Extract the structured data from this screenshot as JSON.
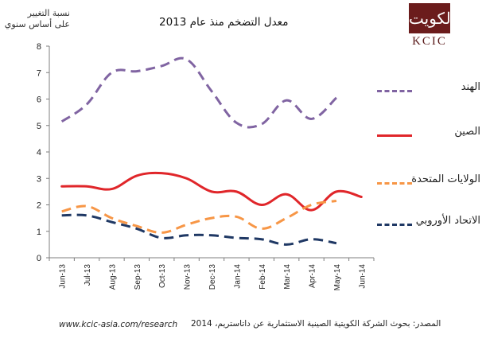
{
  "header": {
    "ylabel_line1": "نسبة التغيير",
    "ylabel_line2": "على أساس سنوي",
    "title": "معدل التضخم منذ عام 2013"
  },
  "logo": {
    "glyph": "الكويت",
    "text": "KCIC"
  },
  "footer": {
    "url": "www.kcic-asia.com/research",
    "source": "المصدر: بحوث الشركة الكويتية الصينية الاستثمارية عن داتاستريم، 2014"
  },
  "chart_data": {
    "type": "line",
    "title": "معدل التضخم منذ عام 2013",
    "ylabel": "نسبة التغيير على أساس سنوي",
    "xlabel": "",
    "ylim": [
      0,
      8
    ],
    "yticks": [
      0,
      1,
      2,
      3,
      4,
      5,
      6,
      7,
      8
    ],
    "grid": false,
    "legend_position": "right",
    "categories": [
      "Jun-13",
      "Jul-13",
      "Aug-13",
      "Sep-13",
      "Oct-13",
      "Nov-13",
      "Dec-13",
      "Jan-14",
      "Feb-14",
      "Mar-14",
      "Apr-14",
      "May-14",
      "Jun-14"
    ],
    "series": [
      {
        "name": "الهند",
        "color": "#8064a2",
        "dash": "dashed",
        "values": [
          5.15,
          5.8,
          7.0,
          7.05,
          7.25,
          7.5,
          6.3,
          5.1,
          5.05,
          5.95,
          5.25,
          6.05,
          null
        ]
      },
      {
        "name": "الصين",
        "color": "#e0262a",
        "dash": "solid",
        "values": [
          2.7,
          2.7,
          2.6,
          3.1,
          3.2,
          3.0,
          2.5,
          2.5,
          2.0,
          2.4,
          1.8,
          2.5,
          2.3
        ]
      },
      {
        "name": "الولايات المتحدة",
        "color": "#f79646",
        "dash": "dashed",
        "values": [
          1.75,
          1.95,
          1.5,
          1.2,
          0.95,
          1.25,
          1.5,
          1.55,
          1.1,
          1.5,
          2.0,
          2.15,
          null
        ]
      },
      {
        "name": "الاتحاد الأوروبي",
        "color": "#1f3864",
        "dash": "dashed",
        "values": [
          1.6,
          1.6,
          1.35,
          1.1,
          0.75,
          0.85,
          0.85,
          0.75,
          0.7,
          0.5,
          0.7,
          0.55,
          null
        ]
      }
    ]
  }
}
